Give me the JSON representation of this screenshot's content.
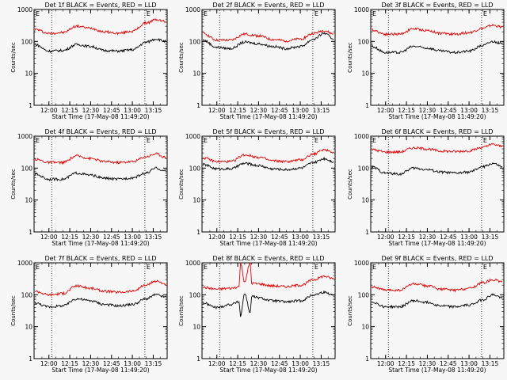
{
  "colors": {
    "background": "#f7f7f7",
    "events": "#000000",
    "lld": "#e00000",
    "axes": "#000000"
  },
  "shared": {
    "ylabel": "Counts/sec",
    "xlabel": "Start Time (17-May-08 11:49:20)",
    "xticks": [
      "12:00",
      "12:15",
      "12:30",
      "12:45",
      "13:00",
      "13:15"
    ],
    "yticks": [
      "1",
      "10",
      "100",
      "1000"
    ],
    "marker": "E"
  },
  "chart_data": [
    {
      "type": "line",
      "title": "Det 1f BLACK = Events, RED = LLD",
      "yscale": "log",
      "ylim": [
        1,
        1000
      ],
      "xlim": [
        "11:49:20",
        "13:25"
      ],
      "grid": false,
      "legend": "none",
      "x": [
        "11:50",
        "12:00",
        "12:10",
        "12:20",
        "12:30",
        "12:40",
        "12:50",
        "13:00",
        "13:10",
        "13:17",
        "13:24"
      ],
      "series": [
        {
          "name": "Events",
          "color": "#000000",
          "values": [
            80,
            50,
            52,
            80,
            70,
            52,
            50,
            55,
            95,
            120,
            100
          ]
        },
        {
          "name": "LLD",
          "color": "#e00000",
          "values": [
            240,
            180,
            190,
            300,
            260,
            200,
            180,
            210,
            380,
            480,
            420
          ]
        }
      ]
    },
    {
      "type": "line",
      "title": "Det 2f BLACK = Events, RED = LLD",
      "yscale": "log",
      "ylim": [
        1,
        1000
      ],
      "xlim": [
        "11:49:20",
        "13:25"
      ],
      "grid": false,
      "legend": "none",
      "x": [
        "11:50",
        "12:00",
        "12:10",
        "12:20",
        "12:30",
        "12:40",
        "12:50",
        "13:00",
        "13:10",
        "13:17",
        "13:24"
      ],
      "series": [
        {
          "name": "Events",
          "color": "#000000",
          "values": [
            110,
            65,
            60,
            95,
            85,
            70,
            60,
            70,
            120,
            180,
            120
          ]
        },
        {
          "name": "LLD",
          "color": "#e00000",
          "values": [
            180,
            110,
            110,
            170,
            150,
            115,
            105,
            120,
            180,
            220,
            170
          ]
        }
      ]
    },
    {
      "type": "line",
      "title": "Det 3f BLACK = Events, RED = LLD",
      "yscale": "log",
      "ylim": [
        1,
        1000
      ],
      "xlim": [
        "11:49:20",
        "13:25"
      ],
      "grid": false,
      "legend": "none",
      "x": [
        "11:50",
        "12:00",
        "12:10",
        "12:20",
        "12:30",
        "12:40",
        "12:50",
        "13:00",
        "13:10",
        "13:17",
        "13:24"
      ],
      "series": [
        {
          "name": "Events",
          "color": "#000000",
          "values": [
            70,
            45,
            45,
            70,
            62,
            50,
            45,
            50,
            75,
            100,
            85
          ]
        },
        {
          "name": "LLD",
          "color": "#e00000",
          "values": [
            230,
            170,
            170,
            250,
            220,
            180,
            170,
            190,
            260,
            320,
            280
          ]
        }
      ]
    },
    {
      "type": "line",
      "title": "Det 4f BLACK = Events, RED = LLD",
      "yscale": "log",
      "ylim": [
        1,
        1000
      ],
      "xlim": [
        "11:49:20",
        "13:25"
      ],
      "grid": false,
      "legend": "none",
      "x": [
        "11:50",
        "12:00",
        "12:10",
        "12:20",
        "12:30",
        "12:40",
        "12:50",
        "13:00",
        "13:10",
        "13:17",
        "13:24"
      ],
      "series": [
        {
          "name": "Events",
          "color": "#000000",
          "values": [
            65,
            45,
            45,
            70,
            60,
            48,
            45,
            50,
            70,
            100,
            80
          ]
        },
        {
          "name": "LLD",
          "color": "#e00000",
          "values": [
            190,
            150,
            150,
            240,
            200,
            160,
            150,
            160,
            230,
            280,
            220
          ]
        }
      ]
    },
    {
      "type": "line",
      "title": "Det 5f BLACK = Events, RED = LLD",
      "yscale": "log",
      "ylim": [
        1,
        1000
      ],
      "xlim": [
        "11:49:20",
        "13:25"
      ],
      "grid": false,
      "legend": "none",
      "x": [
        "11:50",
        "12:00",
        "12:10",
        "12:20",
        "12:30",
        "12:40",
        "12:50",
        "13:00",
        "13:10",
        "13:17",
        "13:24"
      ],
      "series": [
        {
          "name": "Events",
          "color": "#000000",
          "values": [
            130,
            95,
            95,
            140,
            120,
            95,
            90,
            100,
            150,
            200,
            160
          ]
        },
        {
          "name": "LLD",
          "color": "#e00000",
          "values": [
            210,
            160,
            160,
            260,
            220,
            170,
            160,
            180,
            280,
            380,
            320
          ]
        }
      ]
    },
    {
      "type": "line",
      "title": "Det 6f BLACK = Events, RED = LLD",
      "yscale": "log",
      "ylim": [
        1,
        1000
      ],
      "xlim": [
        "11:49:20",
        "13:25"
      ],
      "grid": false,
      "legend": "none",
      "x": [
        "11:50",
        "12:00",
        "12:10",
        "12:20",
        "12:30",
        "12:40",
        "12:50",
        "13:00",
        "13:10",
        "13:17",
        "13:24"
      ],
      "series": [
        {
          "name": "Events",
          "color": "#000000",
          "values": [
            110,
            70,
            65,
            100,
            90,
            75,
            70,
            75,
            110,
            140,
            110
          ]
        },
        {
          "name": "LLD",
          "color": "#e00000",
          "values": [
            380,
            320,
            320,
            430,
            400,
            340,
            330,
            350,
            450,
            550,
            480
          ]
        }
      ]
    },
    {
      "type": "line",
      "title": "Det 7f BLACK = Events, RED = LLD",
      "yscale": "log",
      "ylim": [
        1,
        1000
      ],
      "xlim": [
        "11:49:20",
        "13:25"
      ],
      "grid": false,
      "legend": "none",
      "x": [
        "11:50",
        "12:00",
        "12:10",
        "12:20",
        "12:30",
        "12:40",
        "12:50",
        "13:00",
        "13:10",
        "13:17",
        "13:24"
      ],
      "series": [
        {
          "name": "Events",
          "color": "#000000",
          "values": [
            55,
            42,
            45,
            75,
            65,
            50,
            45,
            50,
            75,
            100,
            85
          ]
        },
        {
          "name": "LLD",
          "color": "#e00000",
          "values": [
            130,
            100,
            110,
            190,
            160,
            130,
            120,
            130,
            200,
            270,
            220
          ]
        }
      ]
    },
    {
      "type": "line",
      "title": "Det 8f BLACK = Events, RED = LLD",
      "yscale": "log",
      "ylim": [
        1,
        1000
      ],
      "xlim": [
        "11:49:20",
        "13:25"
      ],
      "grid": false,
      "legend": "none",
      "x": [
        "11:50",
        "12:00",
        "12:10",
        "12:16",
        "12:17",
        "12:20",
        "12:24",
        "12:25",
        "12:30",
        "12:40",
        "12:50",
        "13:00",
        "13:10",
        "13:17",
        "13:24"
      ],
      "series": [
        {
          "name": "Events",
          "color": "#000000",
          "values": [
            55,
            40,
            50,
            60,
            22,
            110,
            28,
            90,
            80,
            65,
            60,
            65,
            100,
            120,
            100
          ]
        },
        {
          "name": "LLD",
          "color": "#e00000",
          "values": [
            170,
            150,
            160,
            180,
            1000,
            260,
            1000,
            230,
            220,
            190,
            180,
            200,
            300,
            380,
            320
          ]
        }
      ]
    },
    {
      "type": "line",
      "title": "Det 9f BLACK = Events, RED = LLD",
      "yscale": "log",
      "ylim": [
        1,
        1000
      ],
      "xlim": [
        "11:49:20",
        "13:25"
      ],
      "grid": false,
      "legend": "none",
      "x": [
        "11:50",
        "12:00",
        "12:10",
        "12:20",
        "12:30",
        "12:40",
        "12:50",
        "13:00",
        "13:10",
        "13:17",
        "13:24"
      ],
      "series": [
        {
          "name": "Events",
          "color": "#000000",
          "values": [
            60,
            42,
            42,
            65,
            58,
            45,
            42,
            48,
            70,
            100,
            80
          ]
        },
        {
          "name": "LLD",
          "color": "#e00000",
          "values": [
            180,
            140,
            140,
            220,
            190,
            150,
            140,
            160,
            240,
            300,
            250
          ]
        }
      ]
    }
  ]
}
